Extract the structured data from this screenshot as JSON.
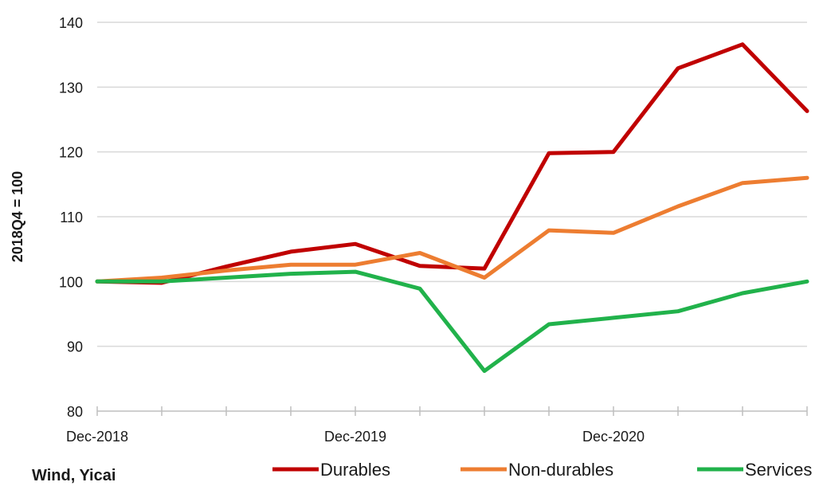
{
  "chart_data": {
    "type": "line",
    "x": [
      "Dec-2018",
      "Mar-2019",
      "Jun-2019",
      "Sep-2019",
      "Dec-2019",
      "Mar-2020",
      "Jun-2020",
      "Sep-2020",
      "Dec-2020",
      "Mar-2021",
      "Jun-2021",
      "Sep-2021"
    ],
    "xtick_labels": [
      "Dec-2018",
      "",
      "",
      "",
      "Dec-2019",
      "",
      "",
      "",
      "Dec-2020",
      "",
      "",
      ""
    ],
    "series": [
      {
        "name": "Durables",
        "color": "#c00000",
        "values": [
          100,
          99.8,
          102.3,
          104.6,
          105.8,
          102.4,
          102.0,
          119.8,
          120.0,
          132.9,
          136.6,
          126.3
        ]
      },
      {
        "name": "Non-durables",
        "color": "#ed7d31",
        "values": [
          100,
          100.6,
          101.7,
          102.6,
          102.6,
          104.4,
          100.6,
          107.9,
          107.5,
          111.6,
          115.2,
          116.0
        ]
      },
      {
        "name": "Services",
        "color": "#21b24b",
        "values": [
          100,
          100.0,
          100.6,
          101.2,
          101.5,
          98.9,
          86.2,
          93.4,
          94.4,
          95.4,
          98.2,
          100.0
        ]
      }
    ],
    "yticks": [
      80,
      90,
      100,
      110,
      120,
      130,
      140
    ],
    "ylim": [
      80,
      140
    ],
    "ylabel": "2018Q4 = 100",
    "xlabel": "",
    "title": "",
    "grid": "horizontal",
    "legend_position": "bottom-right",
    "source": "Wind, Yicai"
  }
}
